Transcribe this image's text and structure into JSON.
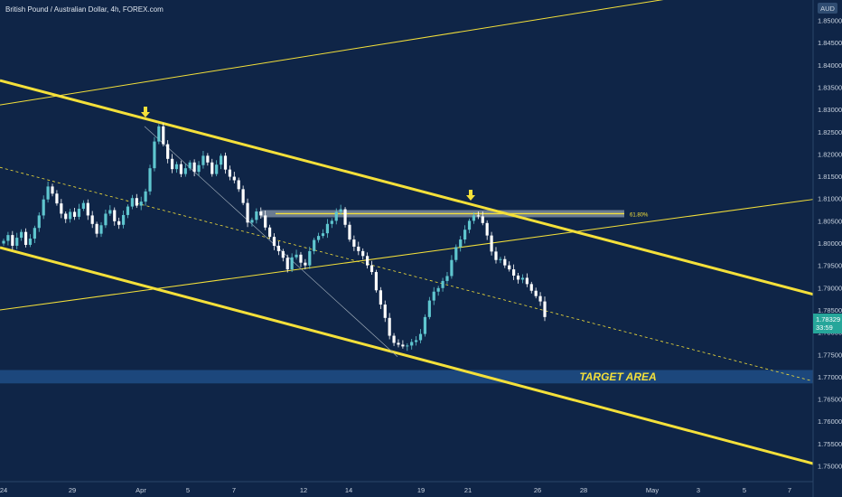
{
  "header": {
    "title": "British Pound / Australian Dollar, 4h, FOREX.com",
    "currency": "AUD"
  },
  "price_label": {
    "price": "1.78329",
    "countdown": "33:59"
  },
  "annotations": {
    "target_label": "TARGET AREA",
    "fib_label": "61.80%"
  },
  "colors": {
    "background": "#0f2547",
    "up_candle": "#5fc6cf",
    "down_candle": "#ffffff",
    "channel": "#f4e03a",
    "target_band": "#1f4d86",
    "fib_band": "#b7c3cf",
    "price_box": "#26a69a"
  },
  "chart_data": {
    "type": "candlestick",
    "title": "British Pound / Australian Dollar, 4h, FOREX.com",
    "ylim": [
      1.7495,
      1.8565
    ],
    "y_ticks": [
      "1.85000",
      "1.84500",
      "1.84000",
      "1.83500",
      "1.83000",
      "1.82500",
      "1.82000",
      "1.81500",
      "1.81000",
      "1.80500",
      "1.80000",
      "1.79500",
      "1.79000",
      "1.78500",
      "1.78000",
      "1.77500",
      "1.77000",
      "1.76500",
      "1.76000",
      "1.75500",
      "1.75000"
    ],
    "x_ticks": [
      "24",
      "29",
      "Apr",
      "5",
      "7",
      "12",
      "14",
      "19",
      "21",
      "26",
      "28",
      "May",
      "3",
      "5",
      "7"
    ],
    "close_series": [
      1.8005,
      1.8018,
      1.7994,
      1.8012,
      1.8025,
      1.7996,
      1.801,
      1.8034,
      1.8062,
      1.8098,
      1.8127,
      1.8111,
      1.8089,
      1.8066,
      1.8054,
      1.807,
      1.8059,
      1.8077,
      1.809,
      1.8062,
      1.8043,
      1.8021,
      1.804,
      1.8066,
      1.8074,
      1.8049,
      1.8041,
      1.8063,
      1.8082,
      1.8101,
      1.8084,
      1.8093,
      1.8116,
      1.8168,
      1.8228,
      1.8262,
      1.8222,
      1.8189,
      1.8166,
      1.8177,
      1.8155,
      1.8168,
      1.8181,
      1.816,
      1.8175,
      1.8196,
      1.8181,
      1.8155,
      1.8176,
      1.8196,
      1.8165,
      1.8149,
      1.8141,
      1.8121,
      1.809,
      1.8046,
      1.8052,
      1.8071,
      1.8062,
      1.8035,
      1.8014,
      1.7994,
      1.7982,
      1.7967,
      1.7941,
      1.7968,
      1.7974,
      1.7956,
      1.795,
      1.7982,
      1.8007,
      1.8016,
      1.8022,
      1.8043,
      1.805,
      1.807,
      1.8076,
      1.8041,
      1.8008,
      1.7992,
      1.7982,
      1.7971,
      1.795,
      1.7935,
      1.7894,
      1.7862,
      1.7832,
      1.7792,
      1.7776,
      1.7772,
      1.7768,
      1.777,
      1.7778,
      1.7782,
      1.7796,
      1.7834,
      1.7871,
      1.7891,
      1.7899,
      1.7915,
      1.7926,
      1.7962,
      1.7991,
      1.8008,
      1.803,
      1.805,
      1.8062,
      1.806,
      1.8045,
      1.8017,
      1.7981,
      1.7962,
      1.7964,
      1.795,
      1.7941,
      1.7927,
      1.7918,
      1.7922,
      1.7908,
      1.7893,
      1.7881,
      1.7869,
      1.7834
    ],
    "channel_lines": [
      {
        "name": "upper",
        "p1": [
          "edge-left",
          1.8365
        ],
        "p2": [
          "edge-right",
          1.7885
        ]
      },
      {
        "name": "lower",
        "p1": [
          "edge-left",
          1.799
        ],
        "p2": [
          "edge-right",
          1.7505
        ]
      },
      {
        "name": "median",
        "p1": [
          "edge-left",
          1.817
        ],
        "p2": [
          "edge-right",
          1.769
        ]
      },
      {
        "name": "rising-upper",
        "p1": [
          "edge-left",
          1.831
        ],
        "p2": [
          "edge-right",
          1.86
        ]
      },
      {
        "name": "rising-lower",
        "p1": [
          "edge-left",
          1.785
        ],
        "p2": [
          "edge-right",
          1.8098
        ]
      }
    ],
    "target_band": [
      1.7685,
      1.7715
    ],
    "fib_level": {
      "label": "61.80%",
      "price": 1.8066
    },
    "current_price": 1.78329,
    "grid": false
  }
}
